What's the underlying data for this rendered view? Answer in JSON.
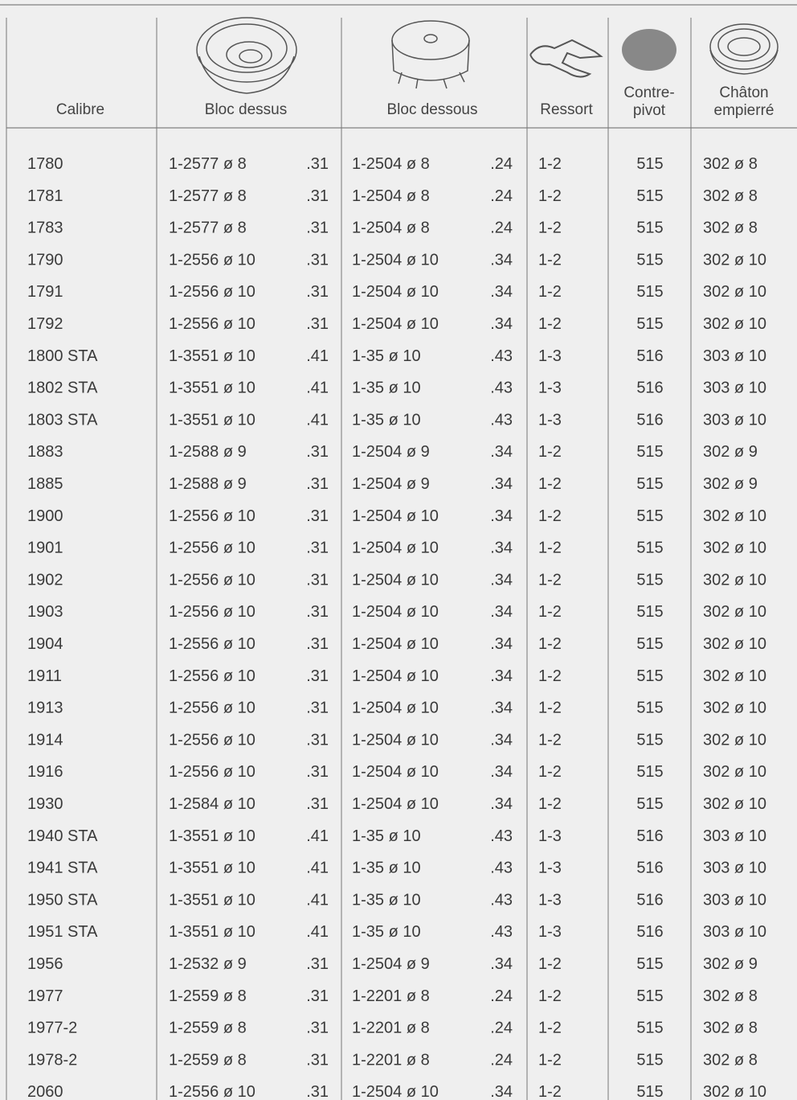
{
  "table": {
    "header": [
      "Calibre",
      "Bloc dessus",
      "Bloc dessous",
      "Ressort",
      [
        "Contre-",
        "pivot"
      ],
      [
        "Châton",
        "empierré"
      ]
    ],
    "rows": [
      [
        "1780",
        "1-2577 ø 8",
        ".31",
        "1-2504 ø 8",
        ".24",
        "1-2",
        "515",
        "302 ø 8"
      ],
      [
        "1781",
        "1-2577 ø 8",
        ".31",
        "1-2504 ø 8",
        ".24",
        "1-2",
        "515",
        "302 ø 8"
      ],
      [
        "1783",
        "1-2577 ø 8",
        ".31",
        "1-2504 ø 8",
        ".24",
        "1-2",
        "515",
        "302 ø 8"
      ],
      [
        "1790",
        "1-2556 ø 10",
        ".31",
        "1-2504 ø 10",
        ".34",
        "1-2",
        "515",
        "302 ø 10"
      ],
      [
        "1791",
        "1-2556 ø 10",
        ".31",
        "1-2504 ø 10",
        ".34",
        "1-2",
        "515",
        "302 ø 10"
      ],
      [
        "1792",
        "1-2556 ø 10",
        ".31",
        "1-2504 ø 10",
        ".34",
        "1-2",
        "515",
        "302 ø 10"
      ],
      [
        "1800 STA",
        "1-3551 ø 10",
        ".41",
        "1-35 ø 10",
        ".43",
        "1-3",
        "516",
        "303 ø 10"
      ],
      [
        "1802 STA",
        "1-3551 ø 10",
        ".41",
        "1-35 ø 10",
        ".43",
        "1-3",
        "516",
        "303 ø 10"
      ],
      [
        "1803 STA",
        "1-3551 ø 10",
        ".41",
        "1-35 ø 10",
        ".43",
        "1-3",
        "516",
        "303 ø 10"
      ],
      [
        "1883",
        "1-2588 ø 9",
        ".31",
        "1-2504 ø 9",
        ".34",
        "1-2",
        "515",
        "302 ø 9"
      ],
      [
        "1885",
        "1-2588 ø 9",
        ".31",
        "1-2504 ø 9",
        ".34",
        "1-2",
        "515",
        "302 ø 9"
      ],
      [
        "1900",
        "1-2556 ø 10",
        ".31",
        "1-2504 ø 10",
        ".34",
        "1-2",
        "515",
        "302 ø 10"
      ],
      [
        "1901",
        "1-2556 ø 10",
        ".31",
        "1-2504 ø 10",
        ".34",
        "1-2",
        "515",
        "302 ø 10"
      ],
      [
        "1902",
        "1-2556 ø 10",
        ".31",
        "1-2504 ø 10",
        ".34",
        "1-2",
        "515",
        "302 ø 10"
      ],
      [
        "1903",
        "1-2556 ø 10",
        ".31",
        "1-2504 ø 10",
        ".34",
        "1-2",
        "515",
        "302 ø 10"
      ],
      [
        "1904",
        "1-2556 ø 10",
        ".31",
        "1-2504 ø 10",
        ".34",
        "1-2",
        "515",
        "302 ø 10"
      ],
      [
        "1911",
        "1-2556 ø 10",
        ".31",
        "1-2504 ø 10",
        ".34",
        "1-2",
        "515",
        "302 ø 10"
      ],
      [
        "1913",
        "1-2556 ø 10",
        ".31",
        "1-2504 ø 10",
        ".34",
        "1-2",
        "515",
        "302 ø 10"
      ],
      [
        "1914",
        "1-2556 ø 10",
        ".31",
        "1-2504 ø 10",
        ".34",
        "1-2",
        "515",
        "302 ø 10"
      ],
      [
        "1916",
        "1-2556 ø 10",
        ".31",
        "1-2504 ø 10",
        ".34",
        "1-2",
        "515",
        "302 ø 10"
      ],
      [
        "1930",
        "1-2584 ø 10",
        ".31",
        "1-2504 ø 10",
        ".34",
        "1-2",
        "515",
        "302 ø 10"
      ],
      [
        "1940 STA",
        "1-3551 ø 10",
        ".41",
        "1-35 ø 10",
        ".43",
        "1-3",
        "516",
        "303 ø 10"
      ],
      [
        "1941 STA",
        "1-3551 ø 10",
        ".41",
        "1-35 ø 10",
        ".43",
        "1-3",
        "516",
        "303 ø 10"
      ],
      [
        "1950 STA",
        "1-3551 ø 10",
        ".41",
        "1-35 ø 10",
        ".43",
        "1-3",
        "516",
        "303 ø 10"
      ],
      [
        "1951 STA",
        "1-3551 ø 10",
        ".41",
        "1-35 ø 10",
        ".43",
        "1-3",
        "516",
        "303 ø 10"
      ],
      [
        "1956",
        "1-2532 ø 9",
        ".31",
        "1-2504 ø 9",
        ".34",
        "1-2",
        "515",
        "302 ø 9"
      ],
      [
        "1977",
        "1-2559 ø 8",
        ".31",
        "1-2201 ø 8",
        ".24",
        "1-2",
        "515",
        "302 ø 8"
      ],
      [
        "1977-2",
        "1-2559 ø 8",
        ".31",
        "1-2201 ø 8",
        ".24",
        "1-2",
        "515",
        "302 ø 8"
      ],
      [
        "1978-2",
        "1-2559 ø 8",
        ".31",
        "1-2201 ø 8",
        ".24",
        "1-2",
        "515",
        "302 ø 8"
      ],
      [
        "2060",
        "1-2556 ø 10",
        ".31",
        "1-2504 ø 10",
        ".34",
        "1-2",
        "515",
        "302 ø 10"
      ]
    ]
  }
}
